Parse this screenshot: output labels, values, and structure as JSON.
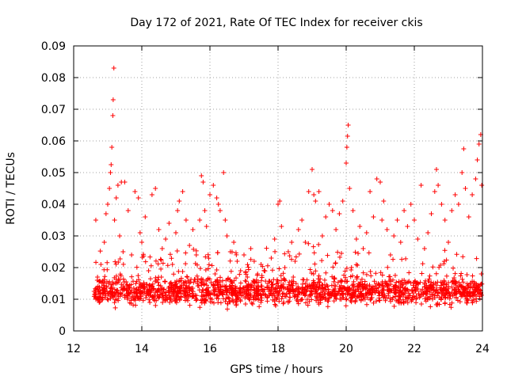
{
  "chart_data": {
    "type": "scatter",
    "title": "Day 172 of 2021, Rate Of TEC Index for receiver ckis",
    "xlabel": "GPS time / hours",
    "ylabel": "ROTI / TECUs",
    "xlim": [
      12,
      24
    ],
    "ylim": [
      0,
      0.09
    ],
    "grid": true,
    "xticks": [
      12,
      14,
      16,
      18,
      20,
      22,
      24
    ],
    "xtick_labels": [
      "12",
      "14",
      "16",
      "18",
      "20",
      "22",
      "24"
    ],
    "yticks": [
      0,
      0.01,
      0.02,
      0.03,
      0.04,
      0.05,
      0.06,
      0.07,
      0.08,
      0.09
    ],
    "ytick_labels": [
      "0",
      "0.01",
      "0.02",
      "0.03",
      "0.04",
      "0.05",
      "0.06",
      "0.07",
      "0.08",
      "0.09"
    ],
    "marker": "+",
    "color": "#ff0000",
    "series": [
      {
        "name": "ROTI",
        "points": [
          [
            12.6,
            0.0125
          ],
          [
            12.65,
            0.035
          ],
          [
            12.7,
            0.017
          ],
          [
            12.75,
            0.009
          ],
          [
            12.8,
            0.021
          ],
          [
            12.85,
            0.013
          ],
          [
            12.9,
            0.028
          ],
          [
            12.95,
            0.037
          ],
          [
            13.0,
            0.04
          ],
          [
            13.05,
            0.045
          ],
          [
            13.08,
            0.05
          ],
          [
            13.1,
            0.0525
          ],
          [
            13.12,
            0.058
          ],
          [
            13.15,
            0.068
          ],
          [
            13.16,
            0.073
          ],
          [
            13.18,
            0.083
          ],
          [
            13.2,
            0.035
          ],
          [
            13.25,
            0.042
          ],
          [
            13.3,
            0.046
          ],
          [
            13.35,
            0.03
          ],
          [
            13.4,
            0.047
          ],
          [
            13.45,
            0.025
          ],
          [
            13.5,
            0.047
          ],
          [
            13.6,
            0.038
          ],
          [
            13.7,
            0.024
          ],
          [
            13.8,
            0.044
          ],
          [
            13.9,
            0.042
          ],
          [
            13.95,
            0.031
          ],
          [
            14.0,
            0.028
          ],
          [
            14.1,
            0.036
          ],
          [
            14.2,
            0.019
          ],
          [
            14.3,
            0.043
          ],
          [
            14.4,
            0.045
          ],
          [
            14.5,
            0.032
          ],
          [
            14.6,
            0.026
          ],
          [
            14.7,
            0.029
          ],
          [
            14.8,
            0.034
          ],
          [
            14.9,
            0.021
          ],
          [
            15.0,
            0.031
          ],
          [
            15.05,
            0.038
          ],
          [
            15.1,
            0.041
          ],
          [
            15.2,
            0.044
          ],
          [
            15.3,
            0.035
          ],
          [
            15.4,
            0.027
          ],
          [
            15.5,
            0.032
          ],
          [
            15.6,
            0.024
          ],
          [
            15.7,
            0.035
          ],
          [
            15.75,
            0.049
          ],
          [
            15.8,
            0.047
          ],
          [
            15.85,
            0.038
          ],
          [
            15.9,
            0.033
          ],
          [
            16.0,
            0.043
          ],
          [
            16.1,
            0.046
          ],
          [
            16.2,
            0.042
          ],
          [
            16.25,
            0.04
          ],
          [
            16.3,
            0.038
          ],
          [
            16.4,
            0.05
          ],
          [
            16.45,
            0.035
          ],
          [
            16.5,
            0.03
          ],
          [
            16.6,
            0.025
          ],
          [
            16.7,
            0.028
          ],
          [
            16.8,
            0.022
          ],
          [
            16.9,
            0.019
          ],
          [
            17.0,
            0.024
          ],
          [
            17.1,
            0.017
          ],
          [
            17.2,
            0.026
          ],
          [
            17.3,
            0.022
          ],
          [
            17.4,
            0.018
          ],
          [
            17.5,
            0.021
          ],
          [
            17.6,
            0.019
          ],
          [
            17.7,
            0.015
          ],
          [
            17.8,
            0.023
          ],
          [
            17.9,
            0.029
          ],
          [
            18.0,
            0.04
          ],
          [
            18.05,
            0.041
          ],
          [
            18.1,
            0.033
          ],
          [
            18.2,
            0.02
          ],
          [
            18.3,
            0.025
          ],
          [
            18.4,
            0.028
          ],
          [
            18.5,
            0.022
          ],
          [
            18.6,
            0.032
          ],
          [
            18.7,
            0.035
          ],
          [
            18.8,
            0.028
          ],
          [
            18.9,
            0.044
          ],
          [
            19.0,
            0.051
          ],
          [
            19.05,
            0.043
          ],
          [
            19.1,
            0.041
          ],
          [
            19.2,
            0.044
          ],
          [
            19.3,
            0.03
          ],
          [
            19.4,
            0.036
          ],
          [
            19.5,
            0.04
          ],
          [
            19.6,
            0.038
          ],
          [
            19.7,
            0.032
          ],
          [
            19.8,
            0.037
          ],
          [
            19.9,
            0.041
          ],
          [
            20.0,
            0.053
          ],
          [
            20.02,
            0.058
          ],
          [
            20.04,
            0.0615
          ],
          [
            20.06,
            0.065
          ],
          [
            20.1,
            0.045
          ],
          [
            20.2,
            0.038
          ],
          [
            20.3,
            0.029
          ],
          [
            20.4,
            0.033
          ],
          [
            20.5,
            0.026
          ],
          [
            20.6,
            0.031
          ],
          [
            20.7,
            0.044
          ],
          [
            20.8,
            0.036
          ],
          [
            20.9,
            0.048
          ],
          [
            21.0,
            0.047
          ],
          [
            21.05,
            0.035
          ],
          [
            21.1,
            0.041
          ],
          [
            21.2,
            0.032
          ],
          [
            21.3,
            0.024
          ],
          [
            21.4,
            0.03
          ],
          [
            21.5,
            0.035
          ],
          [
            21.6,
            0.028
          ],
          [
            21.7,
            0.038
          ],
          [
            21.8,
            0.033
          ],
          [
            21.9,
            0.04
          ],
          [
            22.0,
            0.035
          ],
          [
            22.1,
            0.029
          ],
          [
            22.2,
            0.046
          ],
          [
            22.3,
            0.026
          ],
          [
            22.4,
            0.031
          ],
          [
            22.5,
            0.037
          ],
          [
            22.6,
            0.044
          ],
          [
            22.65,
            0.051
          ],
          [
            22.7,
            0.046
          ],
          [
            22.8,
            0.04
          ],
          [
            22.9,
            0.035
          ],
          [
            23.0,
            0.028
          ],
          [
            23.1,
            0.038
          ],
          [
            23.2,
            0.043
          ],
          [
            23.3,
            0.04
          ],
          [
            23.4,
            0.05
          ],
          [
            23.45,
            0.0575
          ],
          [
            23.5,
            0.045
          ],
          [
            23.6,
            0.036
          ],
          [
            23.7,
            0.043
          ],
          [
            23.8,
            0.048
          ],
          [
            23.85,
            0.054
          ],
          [
            23.9,
            0.059
          ],
          [
            23.95,
            0.062
          ],
          [
            23.98,
            0.046
          ]
        ]
      }
    ],
    "base": {
      "xmin": 12.6,
      "xmax": 24.0,
      "count": 1800,
      "seed": 17,
      "median": 0.0125,
      "spread": 0.006,
      "min": 0.003
    }
  }
}
